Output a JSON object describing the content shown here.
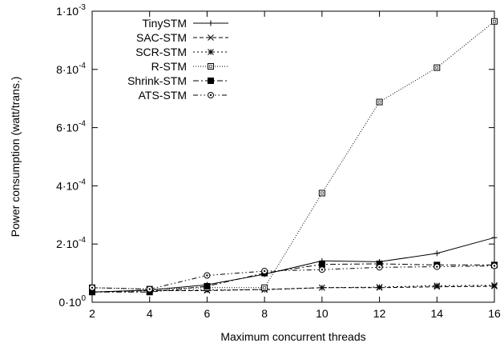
{
  "chart_data": {
    "type": "line",
    "xlabel": "Maximum concurrent threads",
    "ylabel": "Power consumption (watt/trans.)",
    "x": [
      2,
      4,
      6,
      8,
      10,
      12,
      14,
      16
    ],
    "xlim": [
      2,
      16
    ],
    "ylim": [
      0,
      0.001
    ],
    "x_ticks": [
      2,
      4,
      6,
      8,
      10,
      12,
      14,
      16
    ],
    "y_ticks": [
      {
        "value": 0,
        "mantissa": "0",
        "exp": "0"
      },
      {
        "value": 0.0002,
        "mantissa": "2",
        "exp": "-4"
      },
      {
        "value": 0.0004,
        "mantissa": "4",
        "exp": "-4"
      },
      {
        "value": 0.0006,
        "mantissa": "6",
        "exp": "-4"
      },
      {
        "value": 0.0008,
        "mantissa": "8",
        "exp": "-4"
      },
      {
        "value": 0.001,
        "mantissa": "1",
        "exp": "-3"
      }
    ],
    "grid": false,
    "legend_position": "top-left",
    "series": [
      {
        "name": "TinySTM",
        "marker": "plus",
        "dash": "solid",
        "values": [
          3.5e-05,
          4.2e-05,
          6e-05,
          9.6e-05,
          0.000142,
          0.000139,
          0.000168,
          0.000222
        ]
      },
      {
        "name": "SAC-STM",
        "marker": "cross",
        "dash": "dashed",
        "values": [
          3.5e-05,
          4e-05,
          4e-05,
          4.4e-05,
          5e-05,
          5e-05,
          5.3e-05,
          5.5e-05
        ]
      },
      {
        "name": "SCR-STM",
        "marker": "star",
        "dash": "dotted",
        "values": [
          3.5e-05,
          4e-05,
          4.2e-05,
          4.3e-05,
          5e-05,
          5.2e-05,
          5.7e-05,
          5.8e-05
        ]
      },
      {
        "name": "R-STM",
        "marker": "box",
        "dash": "fine-dotted",
        "values": [
          5e-05,
          4.5e-05,
          5e-05,
          5e-05,
          0.000375,
          0.000688,
          0.000806,
          0.000965
        ]
      },
      {
        "name": "Shrink-STM",
        "marker": "filled-box",
        "dash": "dash-dot",
        "values": [
          3.5e-05,
          3.5e-05,
          5.5e-05,
          0.0001,
          0.00013,
          0.000132,
          0.000128,
          0.000128
        ]
      },
      {
        "name": "ATS-STM",
        "marker": "circle",
        "dash": "dash-dot-dot",
        "values": [
          5e-05,
          4.5e-05,
          9.2e-05,
          0.000107,
          0.000112,
          0.00012,
          0.000122,
          0.000125
        ]
      }
    ]
  }
}
